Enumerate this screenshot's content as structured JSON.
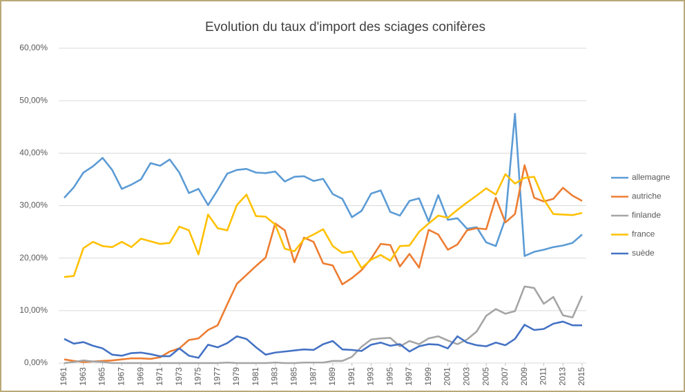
{
  "chart_data": {
    "type": "line",
    "title": "Evolution du taux d'import des sciages conifères",
    "x": [
      1961,
      1962,
      1963,
      1964,
      1965,
      1966,
      1967,
      1968,
      1969,
      1970,
      1971,
      1972,
      1973,
      1974,
      1975,
      1976,
      1977,
      1978,
      1979,
      1980,
      1981,
      1982,
      1983,
      1984,
      1985,
      1986,
      1987,
      1988,
      1989,
      1990,
      1991,
      1992,
      1993,
      1994,
      1995,
      1996,
      1997,
      1998,
      1999,
      2000,
      2001,
      2002,
      2003,
      2004,
      2005,
      2006,
      2007,
      2008,
      2009,
      2010,
      2011,
      2012,
      2013,
      2014,
      2015
    ],
    "xlim": [
      1961,
      2015
    ],
    "xticks": [
      1961,
      1963,
      1965,
      1967,
      1969,
      1971,
      1973,
      1975,
      1977,
      1979,
      1981,
      1983,
      1985,
      1987,
      1989,
      1991,
      1993,
      1995,
      1997,
      1999,
      2001,
      2003,
      2005,
      2007,
      2009,
      2011,
      2013,
      2015
    ],
    "ylim": [
      0,
      60
    ],
    "yticks": [
      {
        "value": 0,
        "label": "0,00%"
      },
      {
        "value": 10,
        "label": "10,00%"
      },
      {
        "value": 20,
        "label": "20,00%"
      },
      {
        "value": 30,
        "label": "30,00%"
      },
      {
        "value": 40,
        "label": "40,00%"
      },
      {
        "value": 50,
        "label": "50,00%"
      },
      {
        "value": 60,
        "label": "60,00%"
      }
    ],
    "grid": true,
    "legend": "right",
    "series": [
      {
        "name": "allemagne",
        "color": "#5B9BD5",
        "values": [
          31.5,
          33.5,
          36.3,
          37.5,
          39.1,
          36.8,
          33.2,
          34,
          35,
          38.1,
          37.6,
          38.8,
          36.3,
          32.4,
          33.2,
          30.1,
          33,
          36.1,
          36.8,
          37,
          36.3,
          36.2,
          36.5,
          34.6,
          35.5,
          35.6,
          34.7,
          35.1,
          32.2,
          31.3,
          27.8,
          29,
          32.3,
          32.9,
          28.8,
          28.1,
          30.9,
          31.4,
          27,
          32,
          27.3,
          27.6,
          25.6,
          25.9,
          23,
          22.3,
          27.5,
          47.5,
          20.4,
          21.2,
          21.6,
          22.1,
          22.4,
          22.9,
          24.5
        ]
      },
      {
        "name": "autriche",
        "color": "#ED7D31",
        "values": [
          0.7,
          0.4,
          0.2,
          0.3,
          0.4,
          0.5,
          0.7,
          0.9,
          0.9,
          0.8,
          1.1,
          2.2,
          2.8,
          4.4,
          4.7,
          6.3,
          7.2,
          11.2,
          15.1,
          16.8,
          18.5,
          20.1,
          26.6,
          25.3,
          19.2,
          23.9,
          23.1,
          19,
          18.6,
          15,
          16.2,
          17.7,
          19.9,
          22.7,
          22.5,
          18.4,
          20.8,
          18.2,
          25.4,
          24.5,
          21.6,
          22.6,
          25.3,
          25.7,
          25.5,
          31.5,
          26.8,
          28.4,
          37.7,
          31.5,
          30.8,
          31.3,
          33.4,
          31.9,
          30.9
        ]
      },
      {
        "name": "finlande",
        "color": "#A5A5A5",
        "values": [
          0,
          0.2,
          0.5,
          0.3,
          0.2,
          0,
          0,
          0,
          0,
          0,
          0,
          0,
          0,
          0,
          0,
          0,
          0,
          0.1,
          0,
          0,
          0,
          0,
          0.1,
          0,
          0,
          0.1,
          0.1,
          0.1,
          0.4,
          0.4,
          1.2,
          3.1,
          4.5,
          4.7,
          4.8,
          3.2,
          4.2,
          3.6,
          4.7,
          5.1,
          4.3,
          3.6,
          4.5,
          6,
          9,
          10.3,
          9.4,
          9.9,
          14.6,
          14.3,
          11.3,
          12.6,
          9.1,
          8.7,
          12.8
        ]
      },
      {
        "name": "france",
        "color": "#FFC000",
        "values": [
          16.4,
          16.6,
          21.9,
          23.1,
          22.3,
          22.1,
          23.1,
          22.1,
          23.7,
          23.2,
          22.7,
          22.9,
          26,
          25.3,
          20.7,
          28.3,
          25.7,
          25.3,
          30.1,
          32.1,
          28,
          27.9,
          26.4,
          21.8,
          21.3,
          23.6,
          24.5,
          25.5,
          22.3,
          21,
          21.3,
          18.1,
          19.7,
          20.6,
          19.5,
          22.3,
          22.4,
          25,
          26.6,
          28.1,
          27.7,
          29.2,
          30.6,
          31.9,
          33.3,
          32.1,
          36,
          34.2,
          35.3,
          35.5,
          31.2,
          28.4,
          28.3,
          28.2,
          28.6
        ]
      },
      {
        "name": "suède",
        "color": "#4472C4",
        "values": [
          4.6,
          3.7,
          4,
          3.3,
          2.8,
          1.6,
          1.4,
          1.9,
          2,
          1.7,
          1.3,
          1.3,
          2.8,
          1.4,
          1,
          3.5,
          3,
          3.8,
          5.1,
          4.6,
          3,
          1.6,
          2,
          2.2,
          2.4,
          2.6,
          2.5,
          3.6,
          4.2,
          2.6,
          2.5,
          2.3,
          3.5,
          3.9,
          3.3,
          3.6,
          2.2,
          3.2,
          3.6,
          3.5,
          2.8,
          5.1,
          3.9,
          3.4,
          3.2,
          3.9,
          3.4,
          4.6,
          7.3,
          6.3,
          6.5,
          7.5,
          7.9,
          7.2,
          7.2
        ]
      }
    ]
  }
}
